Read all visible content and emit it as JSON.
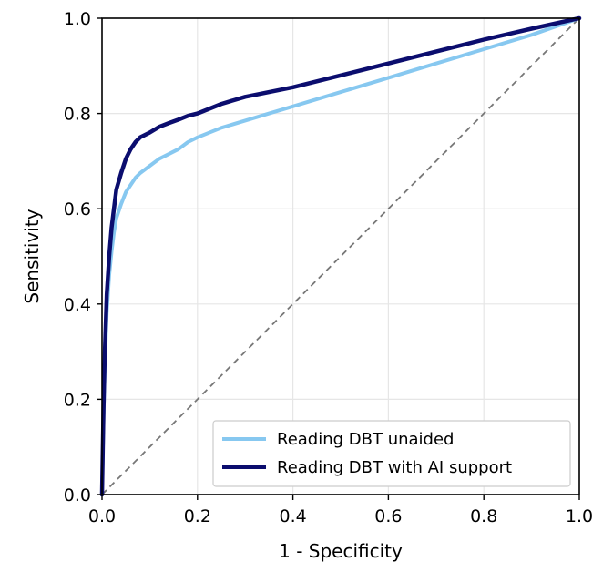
{
  "chart_data": {
    "type": "line",
    "title": "",
    "xlabel": "1 - Specificity",
    "ylabel": "Sensitivity",
    "xlim": [
      0.0,
      1.0
    ],
    "ylim": [
      0.0,
      1.0
    ],
    "grid": true,
    "legend_position": "bottom-right",
    "x_ticks": [
      "0.0",
      "0.2",
      "0.4",
      "0.6",
      "0.8",
      "1.0"
    ],
    "y_ticks": [
      "0.0",
      "0.2",
      "0.4",
      "0.6",
      "0.8",
      "1.0"
    ],
    "series": [
      {
        "name": "Reading DBT unaided",
        "color": "#87c8f0",
        "x": [
          0.0,
          0.003,
          0.006,
          0.01,
          0.015,
          0.02,
          0.025,
          0.03,
          0.04,
          0.05,
          0.06,
          0.07,
          0.08,
          0.1,
          0.12,
          0.14,
          0.16,
          0.18,
          0.2,
          0.25,
          0.3,
          0.35,
          0.4,
          0.5,
          0.6,
          0.7,
          0.8,
          0.9,
          1.0
        ],
        "y": [
          0.0,
          0.16,
          0.27,
          0.38,
          0.46,
          0.51,
          0.55,
          0.58,
          0.61,
          0.635,
          0.65,
          0.665,
          0.675,
          0.69,
          0.705,
          0.715,
          0.725,
          0.74,
          0.75,
          0.77,
          0.785,
          0.8,
          0.815,
          0.845,
          0.875,
          0.905,
          0.935,
          0.965,
          1.0
        ]
      },
      {
        "name": "Reading DBT with AI support",
        "color": "#0b0d6e",
        "x": [
          0.0,
          0.003,
          0.006,
          0.01,
          0.015,
          0.02,
          0.025,
          0.03,
          0.04,
          0.05,
          0.06,
          0.07,
          0.08,
          0.1,
          0.12,
          0.14,
          0.16,
          0.18,
          0.2,
          0.25,
          0.3,
          0.35,
          0.4,
          0.5,
          0.6,
          0.7,
          0.8,
          0.9,
          1.0
        ],
        "y": [
          0.0,
          0.18,
          0.3,
          0.42,
          0.5,
          0.56,
          0.6,
          0.64,
          0.675,
          0.705,
          0.725,
          0.74,
          0.75,
          0.76,
          0.772,
          0.78,
          0.787,
          0.795,
          0.8,
          0.82,
          0.835,
          0.845,
          0.855,
          0.88,
          0.905,
          0.93,
          0.955,
          0.978,
          1.0
        ]
      }
    ],
    "reference_line": {
      "x": [
        0.0,
        1.0
      ],
      "y": [
        0.0,
        1.0
      ],
      "color": "#777777",
      "style": "dashed"
    }
  }
}
